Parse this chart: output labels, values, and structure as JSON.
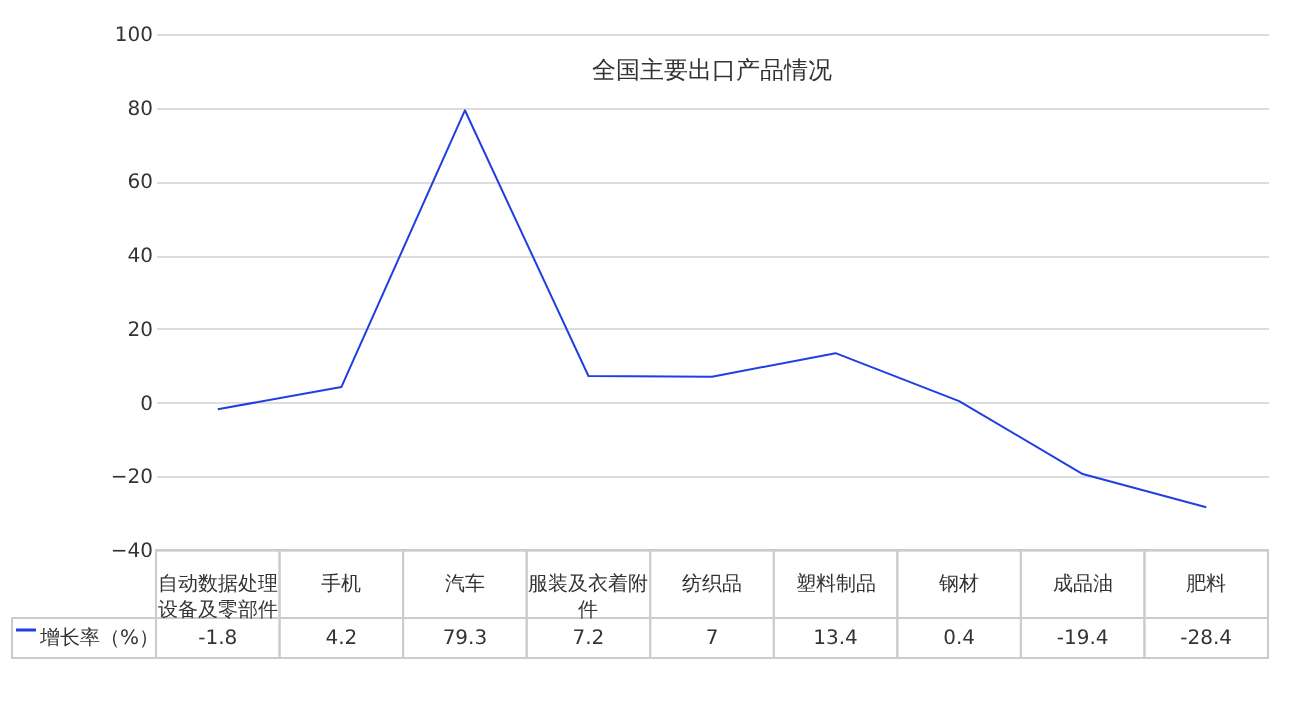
{
  "chart_data": {
    "type": "line",
    "title": "全国主要出口产品情况",
    "categories": [
      "自动数据处理设备及零部件",
      "手机",
      "汽车",
      "服装及衣着附件",
      "纺织品",
      "塑料制品",
      "钢材",
      "成品油",
      "肥料"
    ],
    "series": [
      {
        "name": "增长率（%）",
        "color": "#1f3fe0",
        "values": [
          -1.8,
          4.2,
          79.3,
          7.2,
          7,
          13.4,
          0.4,
          -19.4,
          -28.4
        ]
      }
    ],
    "ylim": [
      -40,
      100
    ],
    "yticks": [
      -40,
      -20,
      0,
      20,
      40,
      60,
      80,
      100
    ],
    "grid": "y",
    "legend": "bottom",
    "data_labels": true,
    "marker": "none",
    "line_style": "solid"
  }
}
